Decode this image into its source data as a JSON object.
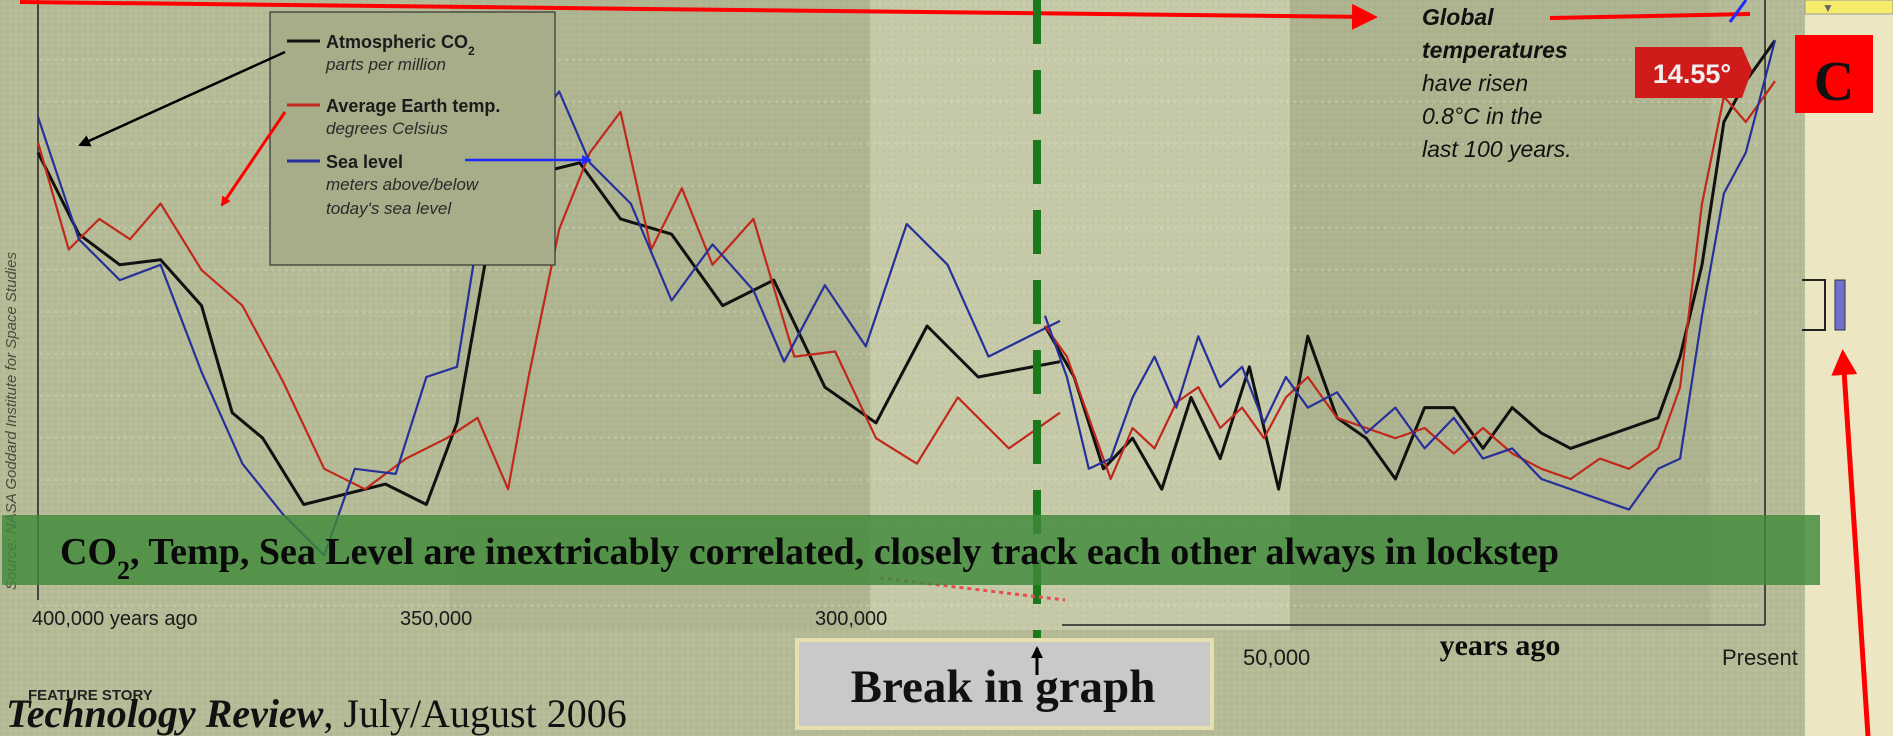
{
  "chart_data": {
    "type": "line",
    "left_panel": {
      "x_tick_labels": [
        "400,000 years ago",
        "350,000",
        "300,000"
      ],
      "series": [
        {
          "name": "Atmospheric CO2",
          "color": "#111111",
          "values": [
            [
              0.0,
              0.74
            ],
            [
              0.04,
              0.58
            ],
            [
              0.08,
              0.52
            ],
            [
              0.12,
              0.53
            ],
            [
              0.16,
              0.44
            ],
            [
              0.19,
              0.23
            ],
            [
              0.22,
              0.18
            ],
            [
              0.26,
              0.05
            ],
            [
              0.3,
              0.07
            ],
            [
              0.34,
              0.09
            ],
            [
              0.38,
              0.05
            ],
            [
              0.41,
              0.21
            ],
            [
              0.46,
              0.78
            ],
            [
              0.49,
              0.7
            ],
            [
              0.53,
              0.72
            ],
            [
              0.57,
              0.61
            ],
            [
              0.62,
              0.58
            ],
            [
              0.67,
              0.44
            ],
            [
              0.72,
              0.49
            ],
            [
              0.77,
              0.28
            ],
            [
              0.82,
              0.21
            ],
            [
              0.87,
              0.4
            ],
            [
              0.92,
              0.3
            ],
            [
              1.0,
              0.33
            ]
          ]
        },
        {
          "name": "Average Earth temp.",
          "color": "#c0281c",
          "values": [
            [
              0.0,
              0.76
            ],
            [
              0.03,
              0.55
            ],
            [
              0.06,
              0.61
            ],
            [
              0.09,
              0.57
            ],
            [
              0.12,
              0.64
            ],
            [
              0.16,
              0.51
            ],
            [
              0.2,
              0.44
            ],
            [
              0.24,
              0.29
            ],
            [
              0.28,
              0.12
            ],
            [
              0.32,
              0.08
            ],
            [
              0.36,
              0.14
            ],
            [
              0.4,
              0.18
            ],
            [
              0.43,
              0.22
            ],
            [
              0.46,
              0.08
            ],
            [
              0.48,
              0.3
            ],
            [
              0.51,
              0.59
            ],
            [
              0.54,
              0.74
            ],
            [
              0.57,
              0.82
            ],
            [
              0.6,
              0.55
            ],
            [
              0.63,
              0.67
            ],
            [
              0.66,
              0.52
            ],
            [
              0.7,
              0.61
            ],
            [
              0.74,
              0.34
            ],
            [
              0.78,
              0.35
            ],
            [
              0.82,
              0.18
            ],
            [
              0.86,
              0.13
            ],
            [
              0.9,
              0.26
            ],
            [
              0.95,
              0.16
            ],
            [
              1.0,
              0.23
            ]
          ]
        },
        {
          "name": "Sea level",
          "color": "#27309a",
          "values": [
            [
              0.0,
              0.81
            ],
            [
              0.04,
              0.57
            ],
            [
              0.08,
              0.49
            ],
            [
              0.12,
              0.52
            ],
            [
              0.16,
              0.31
            ],
            [
              0.2,
              0.13
            ],
            [
              0.24,
              0.03
            ],
            [
              0.28,
              -0.05
            ],
            [
              0.31,
              0.12
            ],
            [
              0.35,
              0.11
            ],
            [
              0.38,
              0.3
            ],
            [
              0.41,
              0.32
            ],
            [
              0.45,
              0.82
            ],
            [
              0.48,
              0.78
            ],
            [
              0.51,
              0.86
            ],
            [
              0.54,
              0.72
            ],
            [
              0.58,
              0.64
            ],
            [
              0.62,
              0.45
            ],
            [
              0.66,
              0.56
            ],
            [
              0.7,
              0.47
            ],
            [
              0.73,
              0.33
            ],
            [
              0.77,
              0.48
            ],
            [
              0.81,
              0.36
            ],
            [
              0.85,
              0.6
            ],
            [
              0.89,
              0.52
            ],
            [
              0.93,
              0.34
            ],
            [
              1.0,
              0.41
            ]
          ]
        }
      ]
    },
    "right_panel": {
      "x_tick_labels": [
        "50,000",
        "Present"
      ],
      "xlabel": "years ago",
      "series": [
        {
          "name": "Atmospheric CO2",
          "color": "#111111",
          "values": [
            [
              0.0,
              0.4
            ],
            [
              0.04,
              0.3
            ],
            [
              0.08,
              0.12
            ],
            [
              0.12,
              0.18
            ],
            [
              0.16,
              0.08
            ],
            [
              0.2,
              0.26
            ],
            [
              0.24,
              0.14
            ],
            [
              0.28,
              0.32
            ],
            [
              0.32,
              0.08
            ],
            [
              0.36,
              0.38
            ],
            [
              0.4,
              0.22
            ],
            [
              0.44,
              0.18
            ],
            [
              0.48,
              0.1
            ],
            [
              0.52,
              0.24
            ],
            [
              0.56,
              0.24
            ],
            [
              0.6,
              0.16
            ],
            [
              0.64,
              0.24
            ],
            [
              0.68,
              0.19
            ],
            [
              0.72,
              0.16
            ],
            [
              0.76,
              0.18
            ],
            [
              0.8,
              0.2
            ],
            [
              0.84,
              0.22
            ],
            [
              0.87,
              0.34
            ],
            [
              0.9,
              0.52
            ],
            [
              0.93,
              0.8
            ],
            [
              0.96,
              0.88
            ],
            [
              1.0,
              0.96
            ]
          ]
        },
        {
          "name": "Average Earth temp.",
          "color": "#c0281c",
          "values": [
            [
              0.0,
              0.4
            ],
            [
              0.03,
              0.34
            ],
            [
              0.06,
              0.22
            ],
            [
              0.09,
              0.1
            ],
            [
              0.12,
              0.2
            ],
            [
              0.15,
              0.16
            ],
            [
              0.18,
              0.25
            ],
            [
              0.21,
              0.28
            ],
            [
              0.24,
              0.2
            ],
            [
              0.27,
              0.24
            ],
            [
              0.3,
              0.18
            ],
            [
              0.33,
              0.26
            ],
            [
              0.36,
              0.3
            ],
            [
              0.4,
              0.22
            ],
            [
              0.44,
              0.2
            ],
            [
              0.48,
              0.18
            ],
            [
              0.52,
              0.2
            ],
            [
              0.56,
              0.15
            ],
            [
              0.6,
              0.2
            ],
            [
              0.64,
              0.15
            ],
            [
              0.68,
              0.12
            ],
            [
              0.72,
              0.1
            ],
            [
              0.76,
              0.14
            ],
            [
              0.8,
              0.12
            ],
            [
              0.84,
              0.16
            ],
            [
              0.87,
              0.28
            ],
            [
              0.9,
              0.64
            ],
            [
              0.93,
              0.85
            ],
            [
              0.96,
              0.8
            ],
            [
              1.0,
              0.88
            ]
          ]
        },
        {
          "name": "Sea level",
          "color": "#27309a",
          "values": [
            [
              0.0,
              0.42
            ],
            [
              0.03,
              0.3
            ],
            [
              0.06,
              0.12
            ],
            [
              0.09,
              0.14
            ],
            [
              0.12,
              0.26
            ],
            [
              0.15,
              0.34
            ],
            [
              0.18,
              0.24
            ],
            [
              0.21,
              0.38
            ],
            [
              0.24,
              0.28
            ],
            [
              0.27,
              0.32
            ],
            [
              0.3,
              0.21
            ],
            [
              0.33,
              0.3
            ],
            [
              0.36,
              0.24
            ],
            [
              0.4,
              0.27
            ],
            [
              0.44,
              0.19
            ],
            [
              0.48,
              0.24
            ],
            [
              0.52,
              0.16
            ],
            [
              0.56,
              0.22
            ],
            [
              0.6,
              0.14
            ],
            [
              0.64,
              0.16
            ],
            [
              0.68,
              0.1
            ],
            [
              0.72,
              0.08
            ],
            [
              0.76,
              0.06
            ],
            [
              0.8,
              0.04
            ],
            [
              0.84,
              0.12
            ],
            [
              0.87,
              0.14
            ],
            [
              0.9,
              0.42
            ],
            [
              0.93,
              0.66
            ],
            [
              0.96,
              0.74
            ],
            [
              1.0,
              0.96
            ]
          ]
        }
      ]
    },
    "legend": [
      {
        "label_parts": [
          "Atmospheric CO",
          "2"
        ],
        "sub": "parts per million",
        "color": "#111111"
      },
      {
        "label_parts": [
          "Average Earth temp."
        ],
        "sub": "degrees Celsius",
        "color": "#c0281c"
      },
      {
        "label_parts": [
          "Sea level"
        ],
        "sub_lines": [
          "meters above/below",
          "today's sea level"
        ],
        "color": "#27309a"
      }
    ],
    "y_side_label": "Source: NASA Goddard Institute for Space Studies",
    "annotation_global": [
      "Global",
      "temperatures",
      "have risen",
      "0.8°C in the",
      "last 100 years."
    ],
    "temp_badge": "14.55°",
    "grid": true
  },
  "banner": {
    "parts": [
      "CO",
      "2",
      ", Temp, Sea Level are inextricably correlated, closely track each other always in lockstep"
    ],
    "color": "#3f8a3a"
  },
  "break_label": "Break in graph",
  "box_c_label": "C",
  "citation": {
    "feature": "FEATURE STORY",
    "journal": "Technology Review",
    "rest": ", July/August 2006"
  },
  "colors": {
    "arrow_red": "#ff0000",
    "arrow_blue": "#1c2cff",
    "break_line": "#1a7a1a",
    "right_panel_bg": "#ede6c3"
  }
}
